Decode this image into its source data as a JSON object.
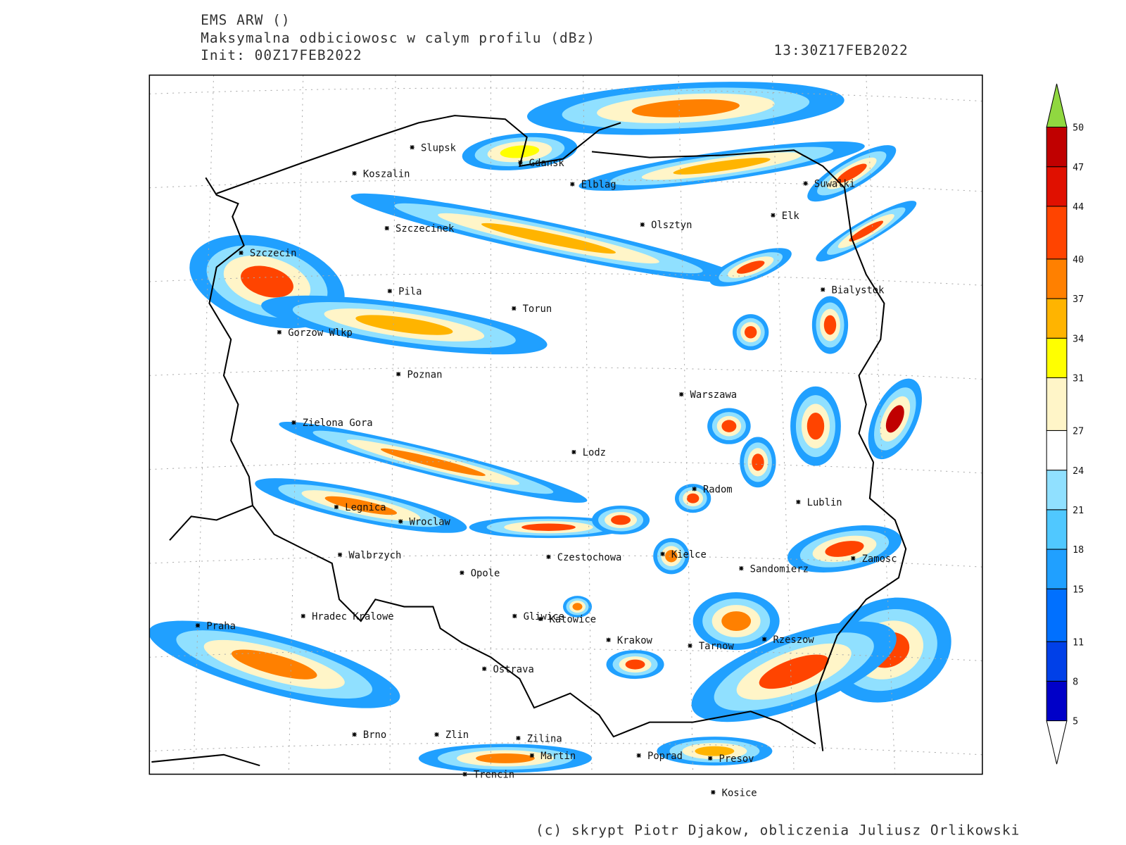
{
  "header": {
    "model": "EMS ARW ()",
    "field": "Maksymalna odbiciowosc w calym profilu (dBz)",
    "init": "Init: 00Z17FEB2022",
    "valid": "13:30Z17FEB2022"
  },
  "cities": [
    "Slupsk",
    "Koszalin",
    "Gdansk",
    "Elblag",
    "Suwalki",
    "Szczecinek",
    "Olsztyn",
    "Elk",
    "Szczecin",
    "Bialystok",
    "Pila",
    "Torun",
    "Gorzow Wlkp",
    "Poznan",
    "Warszawa",
    "Zielona Gora",
    "Lodz",
    "Radom",
    "Lublin",
    "Legnica",
    "Wroclaw",
    "Walbrzych",
    "Czestochowa",
    "Kielce",
    "Zamosc",
    "Sandomierz",
    "Opole",
    "Praha",
    "Hradec Kralowe",
    "Gliwice",
    "Katowice",
    "Krakow",
    "Tarnow",
    "Rzeszow",
    "Ostrava",
    "Brno",
    "Zlin",
    "Zilina",
    "Martin",
    "Poprad",
    "Presov",
    "Trencin",
    "Kosice"
  ],
  "colorbar": {
    "levels": [
      5,
      8,
      11,
      15,
      18,
      21,
      24,
      27,
      31,
      34,
      37,
      40,
      44,
      47,
      50
    ],
    "colors": [
      "#0000c8",
      "#0040e8",
      "#0070ff",
      "#20a0ff",
      "#50c8ff",
      "#90e0ff",
      "#ffffff",
      "#fff5c8",
      "#ffff00",
      "#ffb400",
      "#ff8000",
      "#ff4400",
      "#e01000",
      "#c00000"
    ],
    "over_color": "#90d840",
    "under_color": "#ffffff"
  },
  "credit": "(c) skrypt Piotr Djakow, obliczenia Juliusz Orlikowski"
}
